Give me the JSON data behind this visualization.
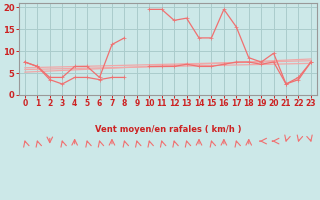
{
  "title": "",
  "xlabel": "Vent moyen/en rafales ( km/h )",
  "bg_color": "#cce8e8",
  "grid_color": "#aacccc",
  "line_color": "#f07070",
  "trend_color": "#f0a8a8",
  "xlim": [
    -0.5,
    23.5
  ],
  "ylim": [
    0,
    21
  ],
  "yticks": [
    0,
    5,
    10,
    15,
    20
  ],
  "xticks": [
    0,
    1,
    2,
    3,
    4,
    5,
    6,
    7,
    8,
    9,
    10,
    11,
    12,
    13,
    14,
    15,
    16,
    17,
    18,
    19,
    20,
    21,
    22,
    23
  ],
  "x": [
    0,
    1,
    2,
    3,
    4,
    5,
    6,
    7,
    8,
    9,
    10,
    11,
    12,
    13,
    14,
    15,
    16,
    17,
    18,
    19,
    20,
    21,
    22,
    23
  ],
  "y_main": [
    7.5,
    6.5,
    4.0,
    4.0,
    6.5,
    6.5,
    4.0,
    11.5,
    13.0,
    null,
    19.5,
    19.5,
    17.0,
    17.5,
    13.0,
    13.0,
    19.5,
    15.5,
    8.5,
    7.5,
    9.5,
    2.5,
    4.0,
    7.5
  ],
  "y_lower": [
    7.5,
    6.5,
    3.5,
    2.5,
    4.0,
    4.0,
    3.5,
    4.0,
    4.0,
    null,
    6.5,
    6.5,
    6.5,
    7.0,
    6.5,
    6.5,
    7.0,
    7.5,
    7.5,
    7.0,
    7.5,
    2.5,
    3.5,
    7.5
  ],
  "trend1": [
    0,
    23,
    5.8,
    7.2
  ],
  "trend2": [
    0,
    23,
    6.2,
    7.8
  ],
  "trend3": [
    0,
    23,
    5.2,
    8.2
  ],
  "wind_dirs_deg": [
    225,
    225,
    0,
    225,
    180,
    225,
    225,
    180,
    225,
    225,
    225,
    225,
    225,
    225,
    180,
    225,
    180,
    225,
    180,
    270,
    270,
    315,
    315,
    45
  ]
}
